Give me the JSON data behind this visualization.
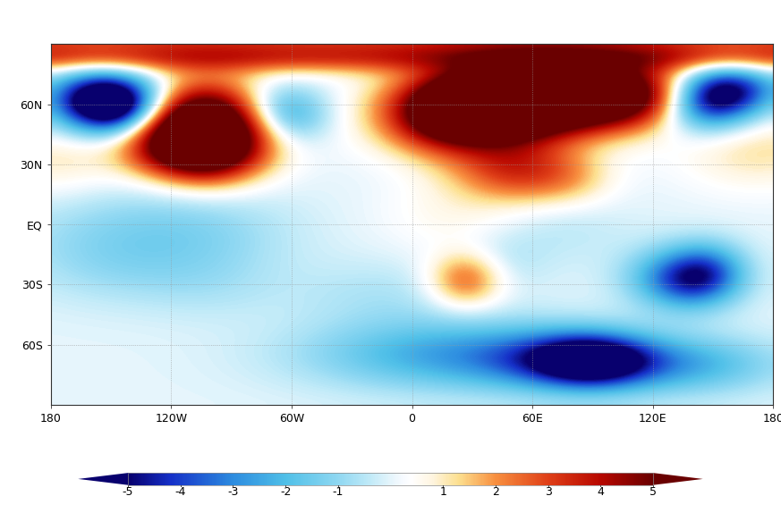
{
  "colorbar_ticks": [
    -5,
    -4,
    -3,
    -2,
    -1,
    1,
    2,
    3,
    4,
    5
  ],
  "xlabel_ticks": [
    "180",
    "120W",
    "60W",
    "0",
    "60E",
    "120E",
    "180"
  ],
  "xlabel_vals": [
    -180,
    -120,
    -60,
    0,
    60,
    120,
    180
  ],
  "ylabel_ticks": [
    "60N",
    "30N",
    "EQ",
    "30S",
    "60S"
  ],
  "ylabel_vals": [
    60,
    30,
    0,
    -30,
    -60
  ],
  "cmap_colors": [
    [
      0.0,
      "#08006e"
    ],
    [
      0.08,
      "#1530c8"
    ],
    [
      0.2,
      "#2d8de0"
    ],
    [
      0.3,
      "#50c0e8"
    ],
    [
      0.4,
      "#90d8f2"
    ],
    [
      0.46,
      "#c0eaf8"
    ],
    [
      0.5,
      "#e5f5fc"
    ],
    [
      0.52,
      "#f5faff"
    ],
    [
      0.54,
      "#ffffff"
    ],
    [
      0.58,
      "#fff5e0"
    ],
    [
      0.63,
      "#fde090"
    ],
    [
      0.7,
      "#f89040"
    ],
    [
      0.8,
      "#e04018"
    ],
    [
      0.9,
      "#b80800"
    ],
    [
      1.0,
      "#6a0000"
    ]
  ],
  "vmin": -5.0,
  "vmax": 5.0,
  "sigma": 6,
  "figsize": [
    8.73,
    5.74
  ],
  "dpi": 100,
  "grid_lons": [
    -120,
    -60,
    0,
    60,
    120
  ],
  "grid_lats": [
    -60,
    -30,
    0,
    30,
    60
  ]
}
